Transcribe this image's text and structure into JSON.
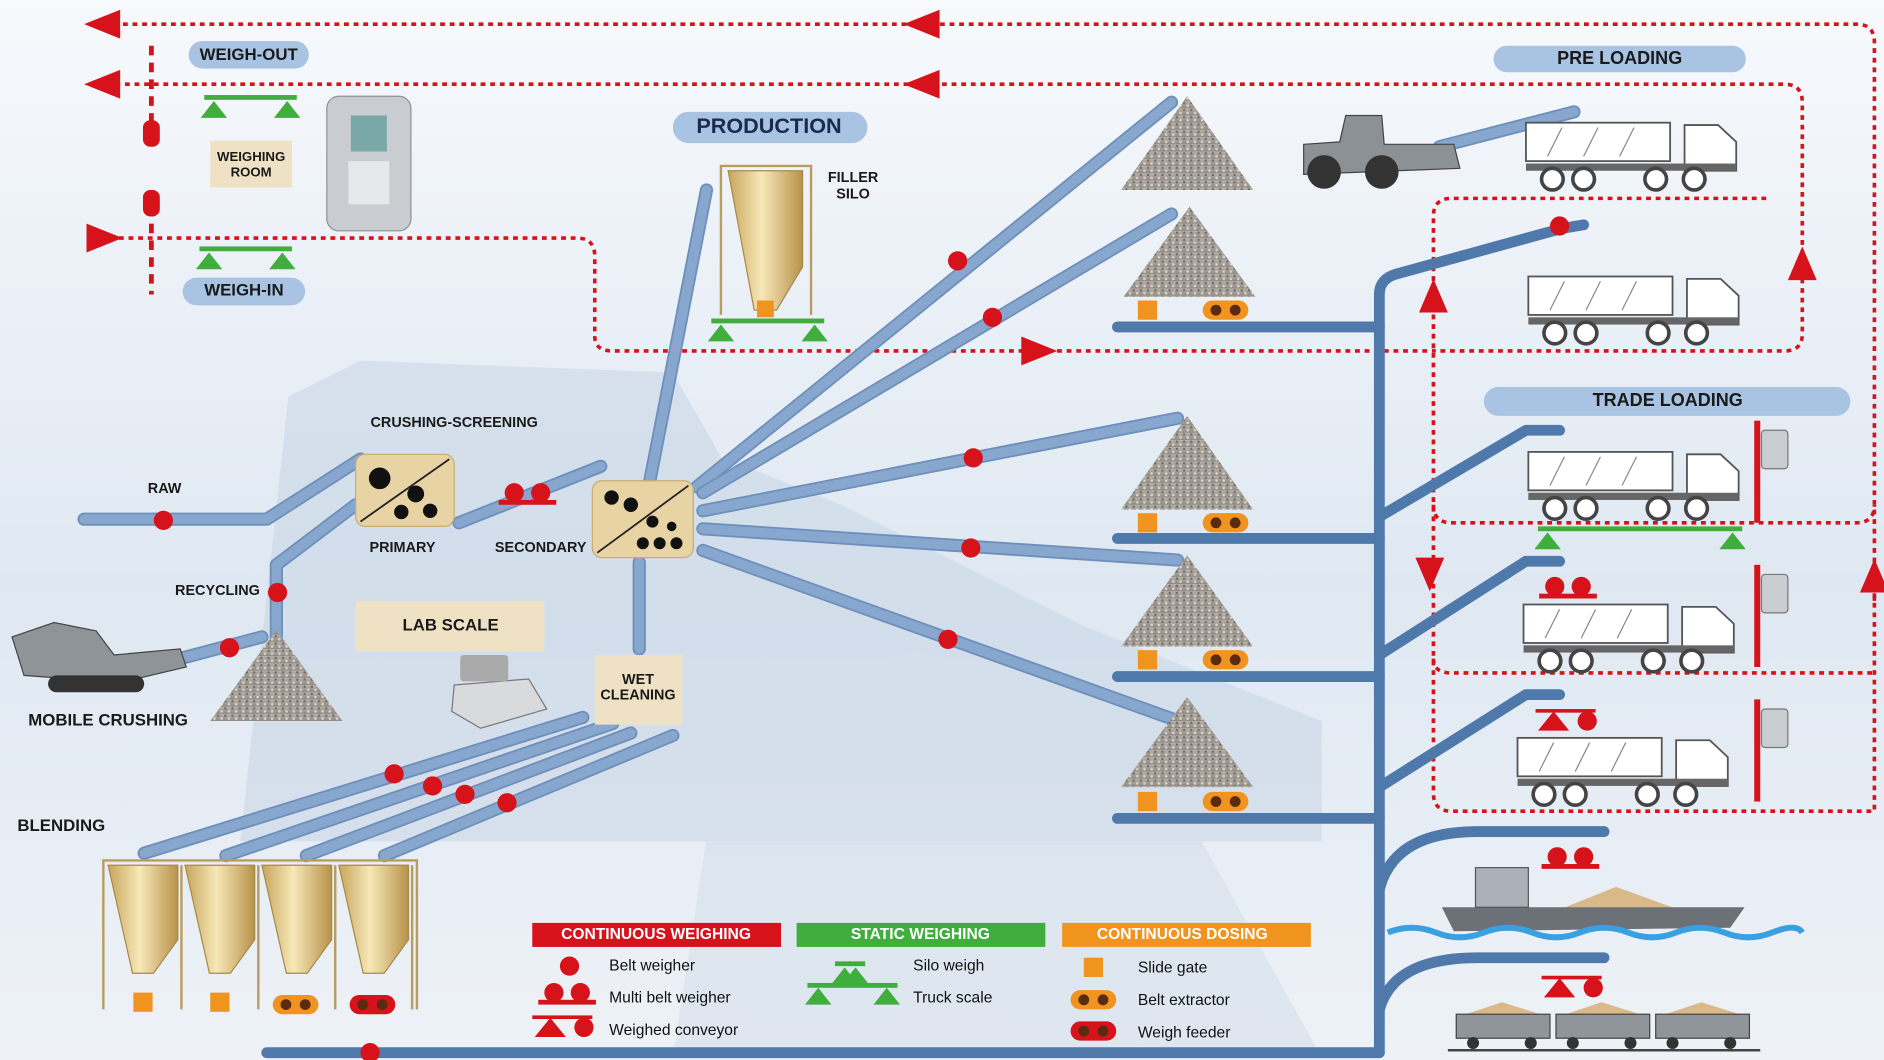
{
  "labels": {
    "weigh_out": "WEIGH-OUT",
    "weigh_in": "WEIGH-IN",
    "weighing_room": [
      "WEIGHING",
      "ROOM"
    ],
    "production": "PRODUCTION",
    "filler_silo": [
      "FILLER",
      "SILO"
    ],
    "pre_loading": "PRE LOADING",
    "trade_loading": "TRADE LOADING",
    "crushing_screening": "CRUSHING-SCREENING",
    "raw": "RAW",
    "primary": "PRIMARY",
    "secondary": "SECONDARY",
    "recycling": "RECYCLING",
    "mobile_crushing": "MOBILE CRUSHING",
    "lab_scale": "LAB SCALE",
    "wet_cleaning": [
      "WET",
      "CLEANING"
    ],
    "blending": "BLENDING"
  },
  "legend": [
    {
      "title": "CONTINUOUS WEIGHING",
      "items": [
        "Belt weigher",
        "Multi belt weigher",
        "Weighed conveyor"
      ]
    },
    {
      "title": "STATIC WEIGHING",
      "items": [
        "Silo weigh",
        "Truck scale"
      ]
    },
    {
      "title": "CONTINUOUS DOSING",
      "items": [
        "Slide gate",
        "Belt extractor",
        "Weigh feeder"
      ]
    }
  ]
}
